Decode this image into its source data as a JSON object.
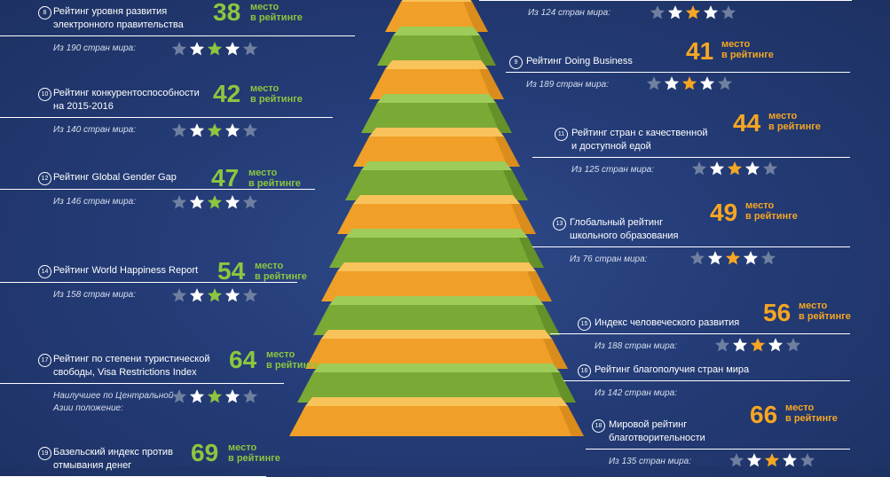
{
  "colors": {
    "green": "#8cc63f",
    "orange": "#f6a623",
    "star_white": "#ffffff",
    "star_gray": "#6f7f9f"
  },
  "top_right_fragment": {
    "sub": "Из 124 стран мира:",
    "rating": 3,
    "total": 5
  },
  "place_label": "место\nв рейтинге",
  "left": [
    {
      "n": "8",
      "title": "Рейтинг уровня развития\nэлектронного правительства",
      "place": "38",
      "color": "green",
      "sub": "Из 190 стран мира:",
      "rating": 3,
      "total": 5
    },
    {
      "n": "10",
      "title": "Рейтинг конкурентоспособности\nна 2015-2016",
      "place": "42",
      "color": "green",
      "sub": "Из 140 стран мира:",
      "rating": 3,
      "total": 5
    },
    {
      "n": "12",
      "title": "Рейтинг Global Gender Gap",
      "place": "47",
      "color": "green",
      "sub": "Из 146 стран мира:",
      "rating": 3,
      "total": 5
    },
    {
      "n": "14",
      "title": "Рейтинг World Happiness Report",
      "place": "54",
      "color": "green",
      "sub": "Из 158 стран мира:",
      "rating": 3,
      "total": 5
    },
    {
      "n": "17",
      "title": "Рейтинг по степени туристической\nсвободы, Visa Restrictions Index",
      "place": "64",
      "color": "green",
      "sub": "Наилучшее по Центральной\nАзии положение:",
      "rating": 3,
      "total": 5
    },
    {
      "n": "19",
      "title": "Базельский индекс против\nотмывания денег",
      "place": "69",
      "color": "green",
      "sub": "",
      "rating": 0,
      "total": 0
    }
  ],
  "right": [
    {
      "n": "9",
      "title": "Рейтинг Doing Business",
      "place": "41",
      "color": "orange",
      "sub": "Из 189 стран мира:",
      "rating": 3,
      "total": 5
    },
    {
      "n": "11",
      "title": "Рейтинг стран с качественной\nи доступной едой",
      "place": "44",
      "color": "orange",
      "sub": "Из 125 стран мира:",
      "rating": 3,
      "total": 5
    },
    {
      "n": "13",
      "title": "Глобальный рейтинг\nшкольного образования",
      "place": "49",
      "color": "orange",
      "sub": "Из 76 стран мира:",
      "rating": 3,
      "total": 5
    },
    {
      "n": "15",
      "title": "Индекс человеческого развития",
      "place": "56",
      "color": "orange",
      "sub": "Из 188 стран мира:",
      "rating": 3,
      "total": 5
    },
    {
      "n": "16",
      "title": "Рейтинг благополучия стран мира",
      "place": "",
      "color": "orange",
      "sub": "Из 142 стран мира:",
      "rating": 0,
      "total": 0
    },
    {
      "n": "18",
      "title": "Мировой рейтинг\nблаготворительности",
      "place": "66",
      "color": "orange",
      "sub": "Из 135 стран мира:",
      "rating": 3,
      "total": 5
    }
  ]
}
